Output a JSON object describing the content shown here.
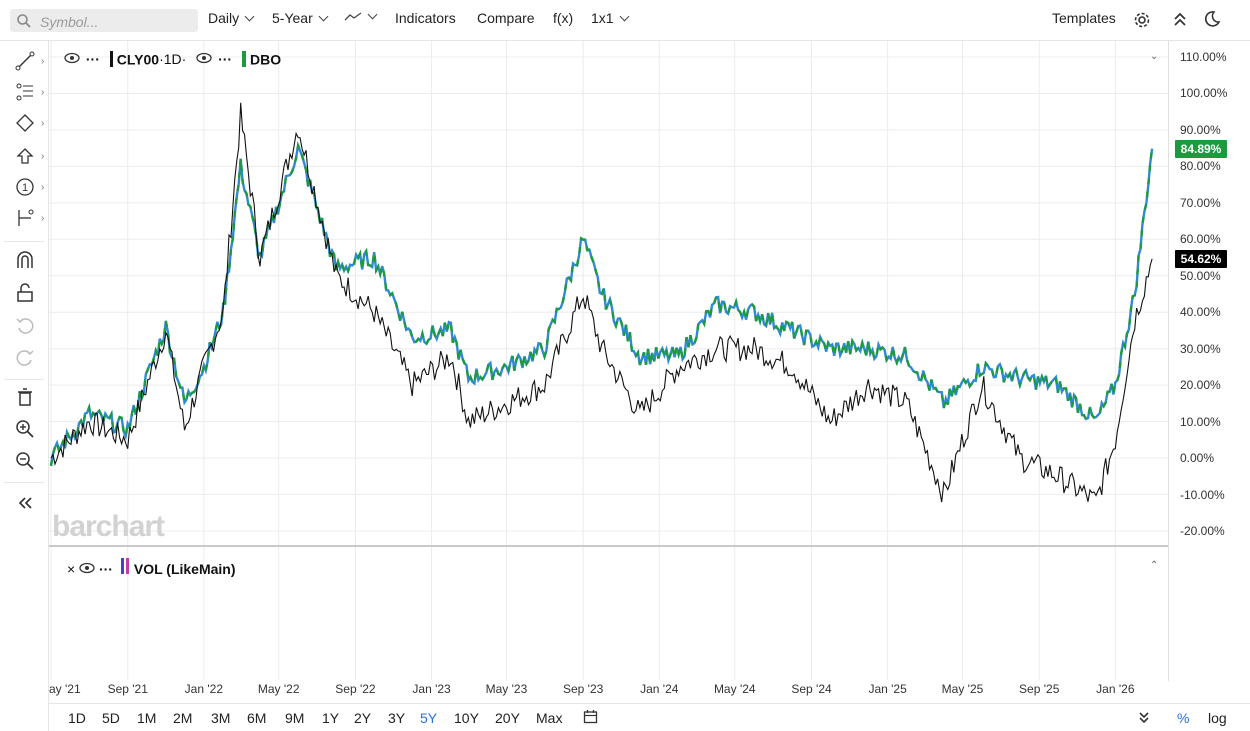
{
  "toolbar": {
    "search_placeholder": "Symbol...",
    "interval": "Daily",
    "period": "5-Year",
    "indicators": "Indicators",
    "compare": "Compare",
    "fx": "f(x)",
    "layout": "1x1",
    "templates": "Templates"
  },
  "left_tools": [
    "trendline-icon",
    "fibonacci-icon",
    "shapes-icon",
    "arrow-up-icon",
    "number-marker-icon",
    "measure-icon",
    "magnet-icon",
    "lock-icon",
    "undo-icon",
    "redo-icon",
    "trash-icon",
    "zoom-in-icon",
    "zoom-out-icon",
    "collapse-icon"
  ],
  "legend": {
    "main_symbol": "CLY00",
    "main_interval": "·1D·",
    "compare_symbol": "DBO",
    "main_color": "#111111",
    "compare_color": "#1b9a3e",
    "compare_alt_color": "#2f8ad6"
  },
  "y_axis": {
    "labels": [
      "110.00%",
      "100.00%",
      "90.00%",
      "80.00%",
      "70.00%",
      "60.00%",
      "50.00%",
      "40.00%",
      "30.00%",
      "20.00%",
      "10.00%",
      "0.00%",
      "-10.00%",
      "-20.00%"
    ],
    "current_tags": [
      {
        "value": 84.89,
        "label": "84.89%",
        "color": "#1b9a3e"
      },
      {
        "value": 54.62,
        "label": "54.62%",
        "color": "#000000"
      }
    ]
  },
  "x_axis": {
    "labels": [
      "ay '21",
      "Sep '21",
      "Jan '22",
      "May '22",
      "Sep '22",
      "Jan '23",
      "May '23",
      "Sep '23",
      "Jan '24",
      "May '24",
      "Sep '24",
      "Jan '25",
      "May '25",
      "Sep '25",
      "Jan '26"
    ]
  },
  "volume_pane": {
    "label": "VOL (LikeMain)"
  },
  "watermark": "barchart",
  "range_buttons": [
    "1D",
    "5D",
    "1M",
    "2M",
    "3M",
    "6M",
    "9M",
    "1Y",
    "2Y",
    "3Y",
    "5Y",
    "10Y",
    "20Y",
    "Max"
  ],
  "active_range": "5Y",
  "scale_options": {
    "percent": "%",
    "log": "log"
  },
  "chart_data": {
    "type": "line",
    "ylim": [
      -20,
      110
    ],
    "y_unit": "%",
    "series": [
      {
        "name": "CLY00",
        "color": "#111111",
        "x": [
          "2021-05",
          "2021-07",
          "2021-09",
          "2021-11",
          "2021-12",
          "2022-01",
          "2022-02",
          "2022-03",
          "2022-04",
          "2022-06",
          "2022-08",
          "2022-10",
          "2022-12",
          "2023-02",
          "2023-03",
          "2023-05",
          "2023-07",
          "2023-09",
          "2023-10",
          "2023-12",
          "2024-02",
          "2024-04",
          "2024-06",
          "2024-08",
          "2024-10",
          "2024-12",
          "2025-02",
          "2025-04",
          "2025-06",
          "2025-08",
          "2025-10",
          "2025-12",
          "2026-01",
          "2026-02",
          "2026-03"
        ],
        "values": [
          0,
          10,
          5,
          35,
          8,
          25,
          40,
          94,
          55,
          91,
          50,
          40,
          20,
          28,
          10,
          15,
          20,
          45,
          30,
          12,
          25,
          30,
          30,
          25,
          10,
          20,
          15,
          -10,
          20,
          0,
          -5,
          -12,
          5,
          38,
          54.62
        ]
      },
      {
        "name": "DBO",
        "color": "#1b9a3e",
        "x": [
          "2021-05",
          "2021-07",
          "2021-09",
          "2021-11",
          "2021-12",
          "2022-01",
          "2022-02",
          "2022-03",
          "2022-04",
          "2022-06",
          "2022-08",
          "2022-10",
          "2022-12",
          "2023-02",
          "2023-03",
          "2023-05",
          "2023-07",
          "2023-09",
          "2023-10",
          "2023-12",
          "2024-02",
          "2024-04",
          "2024-06",
          "2024-08",
          "2024-10",
          "2024-12",
          "2025-02",
          "2025-04",
          "2025-06",
          "2025-08",
          "2025-10",
          "2025-12",
          "2026-01",
          "2026-02",
          "2026-03"
        ],
        "values": [
          0,
          12,
          8,
          36,
          15,
          25,
          40,
          80,
          55,
          85,
          52,
          55,
          33,
          35,
          22,
          25,
          30,
          60,
          45,
          28,
          28,
          42,
          40,
          35,
          30,
          30,
          28,
          15,
          25,
          22,
          20,
          10,
          20,
          45,
          84.89
        ]
      }
    ]
  }
}
